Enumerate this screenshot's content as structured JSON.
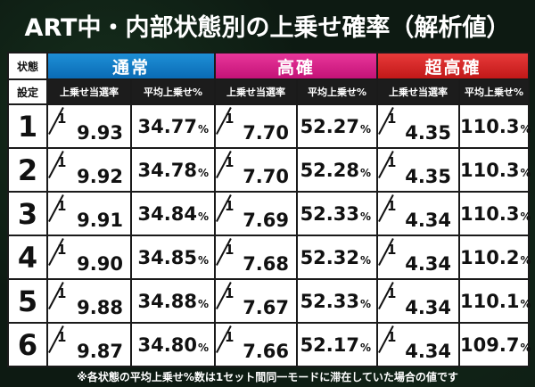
{
  "title": "ART中・内部状態別の上乗せ確率（解析値）",
  "header": {
    "state_label": "状態",
    "setting_label": "設定",
    "groups": [
      {
        "label": "通常",
        "color": "#1e8fd6"
      },
      {
        "label": "高確",
        "color": "#e8369a"
      },
      {
        "label": "超高確",
        "color": "#e83a3a"
      }
    ],
    "sub_labels": {
      "rate": "上乗せ当選率",
      "avg": "平均上乗せ%"
    }
  },
  "rows": [
    {
      "setting": "1",
      "cells": [
        {
          "one": "1",
          "rate": "9.93",
          "avg": "34.77"
        },
        {
          "one": "1",
          "rate": "7.70",
          "avg": "52.27"
        },
        {
          "one": "1",
          "rate": "4.35",
          "avg": "110.3"
        }
      ]
    },
    {
      "setting": "2",
      "cells": [
        {
          "one": "1",
          "rate": "9.92",
          "avg": "34.78"
        },
        {
          "one": "1",
          "rate": "7.70",
          "avg": "52.28"
        },
        {
          "one": "1",
          "rate": "4.35",
          "avg": "110.3"
        }
      ]
    },
    {
      "setting": "3",
      "cells": [
        {
          "one": "1",
          "rate": "9.91",
          "avg": "34.84"
        },
        {
          "one": "1",
          "rate": "7.69",
          "avg": "52.33"
        },
        {
          "one": "1",
          "rate": "4.34",
          "avg": "110.3"
        }
      ]
    },
    {
      "setting": "4",
      "cells": [
        {
          "one": "1",
          "rate": "9.90",
          "avg": "34.85"
        },
        {
          "one": "1",
          "rate": "7.68",
          "avg": "52.32"
        },
        {
          "one": "1",
          "rate": "4.34",
          "avg": "110.2"
        }
      ]
    },
    {
      "setting": "5",
      "cells": [
        {
          "one": "1",
          "rate": "9.88",
          "avg": "34.88"
        },
        {
          "one": "1",
          "rate": "7.67",
          "avg": "52.33"
        },
        {
          "one": "1",
          "rate": "4.34",
          "avg": "110.1"
        }
      ]
    },
    {
      "setting": "6",
      "cells": [
        {
          "one": "1",
          "rate": "9.87",
          "avg": "34.80"
        },
        {
          "one": "1",
          "rate": "7.66",
          "avg": "52.17"
        },
        {
          "one": "1",
          "rate": "4.34",
          "avg": "109.7"
        }
      ]
    }
  ],
  "unit": "%",
  "footnote": "※各状態の平均上乗せ%数は1セット間同一モードに滞在していた場合の値です"
}
